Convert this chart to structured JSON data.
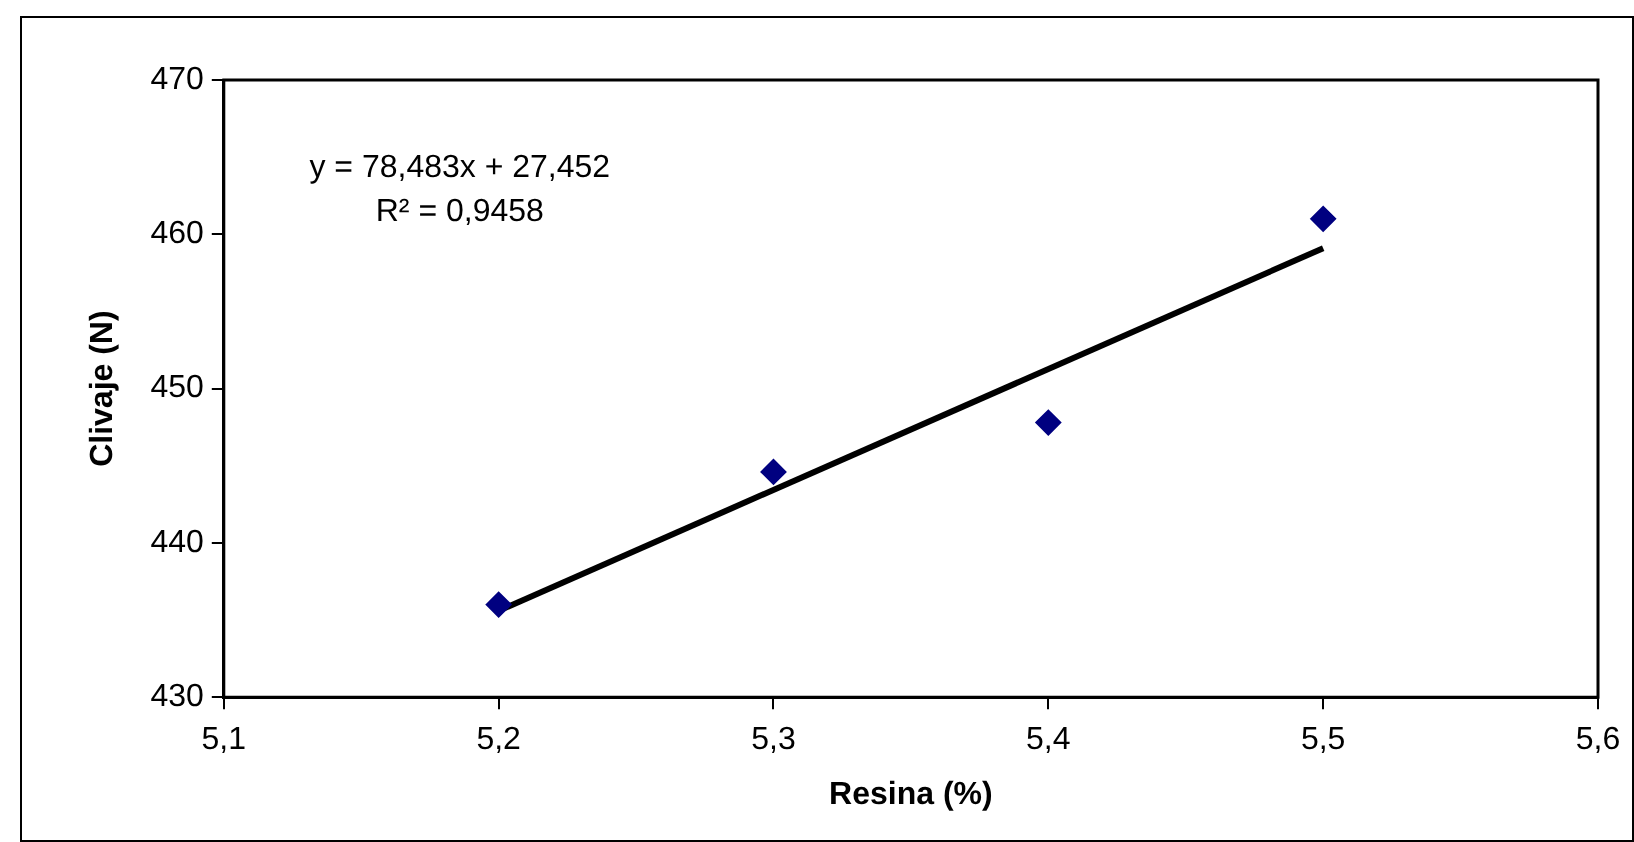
{
  "chart_data": {
    "type": "scatter",
    "xlabel": "Resina (%)",
    "ylabel": "Clivaje (N)",
    "annotations": [
      "y = 78,483x + 27,452",
      "R² = 0,9458"
    ],
    "series": [
      {
        "color": "#000080",
        "marker": "diamond",
        "x": [
          5.2,
          5.3,
          5.4,
          5.5
        ],
        "values": [
          436,
          444.6,
          447.8,
          461
        ]
      },
      {
        "type": "line",
        "color": "#000000",
        "marker": "none",
        "line_style": "solid",
        "x": [
          5.2,
          5.5
        ],
        "values": [
          435.6,
          459.1
        ]
      }
    ],
    "xlim": [
      5.1,
      5.6
    ],
    "xticks": [
      {
        "value": 5.1,
        "label": "5,1"
      },
      {
        "value": 5.2,
        "label": "5,2"
      },
      {
        "value": 5.3,
        "label": "5,3"
      },
      {
        "value": 5.4,
        "label": "5,4"
      },
      {
        "value": 5.5,
        "label": "5,5"
      },
      {
        "value": 5.6,
        "label": "5,6"
      }
    ],
    "ylim": [
      430,
      470
    ],
    "yticks": [
      430,
      440,
      450,
      460,
      470
    ],
    "grid": false,
    "legend": false
  }
}
